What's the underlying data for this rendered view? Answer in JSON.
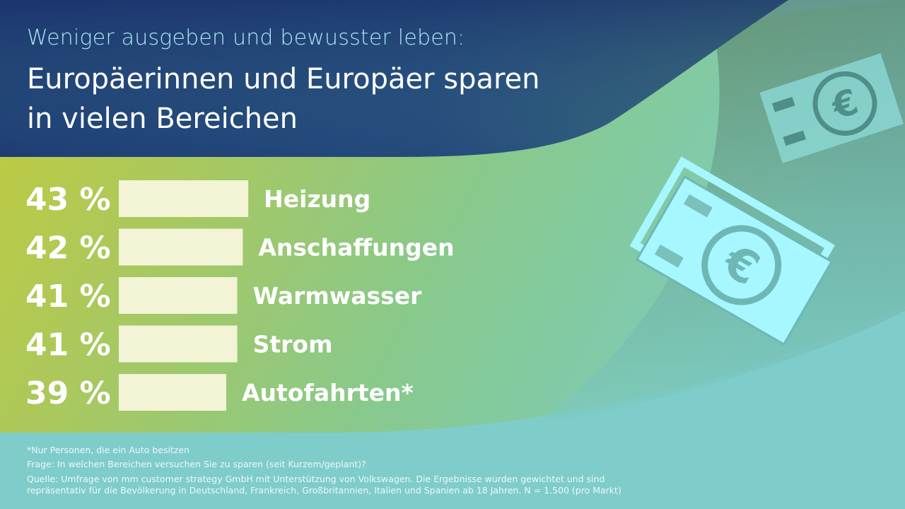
{
  "header": {
    "subtitle": "Weniger ausgeben und bewusster leben:",
    "title_line1": "Europäerinnen und Europäer sparen",
    "title_line2": "in vielen Bereichen"
  },
  "chart_data": {
    "type": "bar",
    "orientation": "horizontal",
    "categories": [
      "Heizung",
      "Anschaffungen",
      "Warmwasser",
      "Strom",
      "Autofahrten*"
    ],
    "values": [
      43,
      42,
      41,
      41,
      39
    ],
    "value_labels": [
      "43 %",
      "42 %",
      "41 %",
      "41 %",
      "39 %"
    ],
    "unit": "%",
    "bar_color": "#f3f3d6",
    "grid": false,
    "legend": "none"
  },
  "footer": {
    "note": "*Nur Personen, die ein Auto besitzen",
    "question": "Frage: In welchen Bereichen versuchen Sie zu sparen (seit Kurzem/geplant)?",
    "source_line1": "Quelle: Umfrage von mm customer strategy GmbH mit Unterstützung von Volkswagen. Die Ergebnisse wurden gewichtet und sind",
    "source_line2": "repräsentativ für die Bevölkerung in Deutschland, Frankreich, Großbritannien, Italien und Spanien ab 18 Jahren. N = 1.500 (pro Markt)"
  },
  "decor": {
    "icons": [
      "euro-banknote-icon",
      "euro-banknote-stack-icon"
    ],
    "colors": {
      "dark_blue": "#1d3a72",
      "lime": "#c4cd3c",
      "teal": "#7fcdcb",
      "icon": "#a6f7ff"
    }
  }
}
